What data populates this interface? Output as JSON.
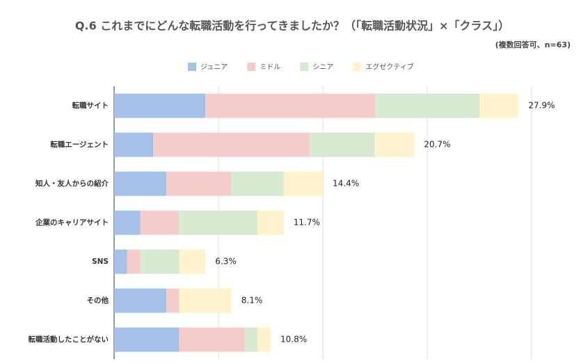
{
  "chart_data": {
    "type": "stacked-barh",
    "title": "Q.6 これまでにどんな転職活動を行ってきましたか？（「転職活動状況」×「クラス」）",
    "subtitle": "(複数回答可、n=63)",
    "categories": [
      "転職サイト",
      "転職エージェント",
      "知人・友人からの紹介",
      "企業のキャリアサイト",
      "SNS",
      "その他",
      "転職活動したことがない"
    ],
    "series": [
      {
        "name": "ジュニア",
        "color": "#a4c2e8",
        "values": [
          6.3,
          2.7,
          3.6,
          1.8,
          0.9,
          3.6,
          4.5
        ]
      },
      {
        "name": "ミドル",
        "color": "#f4cccc",
        "values": [
          11.7,
          10.8,
          4.5,
          2.7,
          0.9,
          0.9,
          4.5
        ]
      },
      {
        "name": "シニア",
        "color": "#d9ead3",
        "values": [
          7.2,
          4.5,
          3.6,
          5.4,
          2.7,
          0,
          0.9
        ]
      },
      {
        "name": "エグゼクティブ",
        "color": "#fff2cc",
        "values": [
          2.7,
          2.7,
          2.7,
          1.8,
          1.8,
          3.6,
          0.9
        ]
      }
    ],
    "totals": [
      27.9,
      20.7,
      14.4,
      11.7,
      6.3,
      8.1,
      10.8
    ],
    "total_labels": [
      "27.9%",
      "20.7%",
      "14.4%",
      "11.7%",
      "6.3%",
      "8.1%",
      "10.8%"
    ],
    "xlim": [
      0,
      28.8
    ],
    "xticks": [
      0,
      7.2,
      14.4,
      21.6,
      28.8
    ],
    "grid": true,
    "legend": "top"
  }
}
